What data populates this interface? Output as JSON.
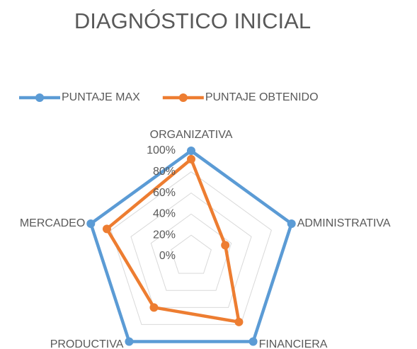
{
  "chart_data": {
    "type": "radar",
    "title": "DIAGNÓSTICO INICIAL",
    "categories": [
      "ORGANIZATIVA",
      "ADMINISTRATIVA",
      "FINANCIERA",
      "PRODUCTIVA",
      "MERCADEO"
    ],
    "series": [
      {
        "name": "PUNTAJE MAX",
        "color": "#5b9bd5",
        "values": [
          100,
          100,
          100,
          100,
          100
        ]
      },
      {
        "name": "PUNTAJE OBTENIDO",
        "color": "#ed7d31",
        "values": [
          92,
          34,
          77,
          60,
          84
        ]
      }
    ],
    "ylim": [
      0,
      100
    ],
    "yticks": [
      {
        "value": 0,
        "label": "0%"
      },
      {
        "value": 20,
        "label": "20%"
      },
      {
        "value": 40,
        "label": "40%"
      },
      {
        "value": 60,
        "label": "60%"
      },
      {
        "value": 80,
        "label": "80%"
      },
      {
        "value": 100,
        "label": "100%"
      }
    ],
    "grid": true,
    "legend": "top"
  }
}
